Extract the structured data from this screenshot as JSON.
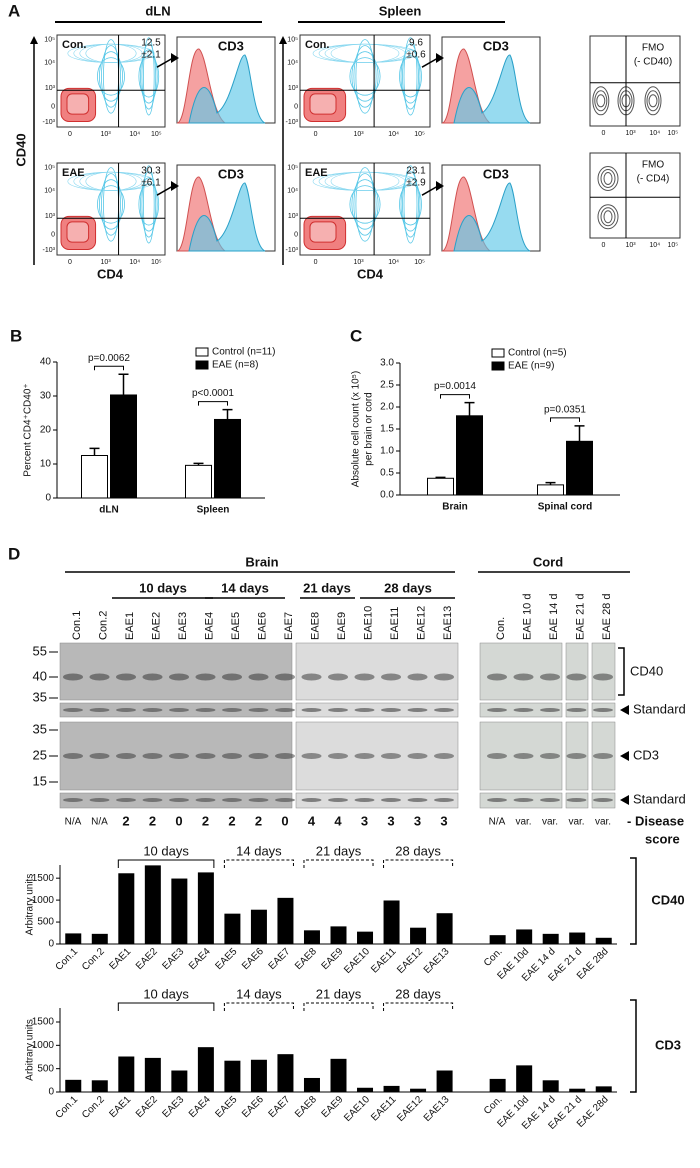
{
  "panel_labels": [
    "A",
    "B",
    "C",
    "D"
  ],
  "panel_a": {
    "groups": [
      "dLN",
      "Spleen"
    ],
    "y_label": "CD40",
    "x_label": "CD4",
    "conditions": [
      "Con.",
      "EAE"
    ],
    "histogram_label": "CD3",
    "quadrant_values": [
      [
        "12.5",
        "±2.1"
      ],
      [
        "30.3",
        "±6.1"
      ],
      [
        "9.6",
        "±0.6"
      ],
      [
        "23.1",
        "±2.9"
      ]
    ],
    "fmo": [
      [
        "FMO",
        "(- CD40)"
      ],
      [
        "FMO",
        "(- CD4)"
      ]
    ],
    "flow_x_ticks": [
      "0",
      "10³",
      "10⁴",
      "10⁵"
    ],
    "flow_y_ticks": [
      "10⁵",
      "10⁴",
      "10³",
      "0",
      "-10³"
    ]
  },
  "panel_d": {
    "regions": [
      "Brain",
      "Cord"
    ],
    "timepoints": [
      "10 days",
      "14 days",
      "21 days",
      "28 days"
    ],
    "lanes_brain": [
      "Con.1",
      "Con.2",
      "EAE1",
      "EAE2",
      "EAE3",
      "EAE4",
      "EAE5",
      "EAE6",
      "EAE7",
      "EAE8",
      "EAE9",
      "EAE10",
      "EAE11",
      "EAE12",
      "EAE13"
    ],
    "lanes_cord": [
      "Con.",
      "EAE 10 d",
      "EAE 14 d",
      "EAE 21 d",
      "EAE 28 d"
    ],
    "mw_top": [
      "55",
      "40",
      "35"
    ],
    "mw_bottom": [
      "35",
      "25",
      "15"
    ],
    "blot_labels": [
      "CD40",
      "Standard",
      "CD3",
      "Standard"
    ],
    "disease_scores": [
      "N/A",
      "N/A",
      2,
      2,
      0,
      2,
      2,
      2,
      0,
      4,
      4,
      3,
      3,
      3,
      3,
      "N/A",
      "var.",
      "var.",
      "var.",
      "var."
    ],
    "disease_score_label": [
      "- Disease",
      "score"
    ]
  },
  "chart_data": [
    {
      "type": "bar",
      "ylabel": [
        "Percent CD4⁺CD40⁺"
      ],
      "categories": [
        "dLN",
        "Spleen"
      ],
      "series": [
        {
          "name": "Control (n=11)",
          "color": "#ffffff",
          "values": [
            12.5,
            9.6
          ],
          "errors": [
            2.1,
            0.6
          ]
        },
        {
          "name": "EAE (n=8)",
          "color": "#000000",
          "values": [
            30.3,
            23.1
          ],
          "errors": [
            6.1,
            2.9
          ]
        }
      ],
      "annotations": [
        "p=0.0062",
        "p<0.0001"
      ],
      "ylim": [
        0,
        40
      ],
      "yticks": [
        0,
        10,
        20,
        30,
        40
      ]
    },
    {
      "type": "bar",
      "ylabel": [
        "Absolute cell count (x 10⁵)",
        "per brain or cord"
      ],
      "categories": [
        "Brain",
        "Spinal cord"
      ],
      "series": [
        {
          "name": "Control (n=5)",
          "color": "#ffffff",
          "values": [
            0.38,
            0.23
          ],
          "errors": [
            0.02,
            0.05
          ]
        },
        {
          "name": "EAE (n=9)",
          "color": "#000000",
          "values": [
            1.8,
            1.22
          ],
          "errors": [
            0.3,
            0.35
          ]
        }
      ],
      "annotations": [
        "p=0.0014",
        "p=0.0351"
      ],
      "ylim": [
        0,
        3
      ],
      "yticks": [
        {
          "value": 0,
          "label": "0.0"
        },
        0.5,
        {
          "value": 1,
          "label": "1.0"
        },
        1.5,
        {
          "value": 2,
          "label": "2.0"
        },
        2.5,
        {
          "value": 3,
          "label": "3.0"
        }
      ]
    },
    {
      "type": "bar",
      "title": "CD40",
      "ylabel": [
        "Arbitrary units"
      ],
      "categories": [
        "Con.1",
        "Con.2",
        "EAE1",
        "EAE2",
        "EAE3",
        "EAE4",
        "EAE5",
        "EAE6",
        "EAE7",
        "EAE8",
        "EAE9",
        "EAE10",
        "EAE11",
        "EAE12",
        "EAE13",
        null,
        "Con.",
        "EAE 10d",
        "EAE 14 d",
        "EAE 21 d",
        "EAE 28d"
      ],
      "values": [
        230,
        220,
        1600,
        1780,
        1480,
        1620,
        680,
        770,
        1040,
        300,
        390,
        270,
        980,
        360,
        690,
        null,
        190,
        320,
        220,
        250,
        130
      ],
      "color": "#000000",
      "brackets": [
        "10 days",
        "14 days",
        "21 days",
        "28 days"
      ],
      "ylim": [
        0,
        1800
      ],
      "yticks": [
        0,
        500,
        1000,
        1500
      ]
    },
    {
      "type": "bar",
      "title": "CD3",
      "ylabel": [
        "Arbitrary units"
      ],
      "categories": [
        "Con.1",
        "Con.2",
        "EAE1",
        "EAE2",
        "EAE3",
        "EAE4",
        "EAE5",
        "EAE6",
        "EAE7",
        "EAE8",
        "EAE9",
        "EAE10",
        "EAE11",
        "EAE12",
        "EAE13",
        null,
        "Con.",
        "EAE 10d",
        "EAE 14 d",
        "EAE 21 d",
        "EAE 28d"
      ],
      "values": [
        250,
        240,
        750,
        720,
        450,
        950,
        660,
        680,
        800,
        290,
        700,
        80,
        120,
        60,
        450,
        null,
        270,
        560,
        240,
        60,
        110
      ],
      "color": "#000000",
      "brackets": [
        "10 days",
        "14 days",
        "21 days",
        "28 days"
      ],
      "ylim": [
        0,
        1800
      ],
      "yticks": [
        0,
        500,
        1000,
        1500
      ]
    }
  ]
}
